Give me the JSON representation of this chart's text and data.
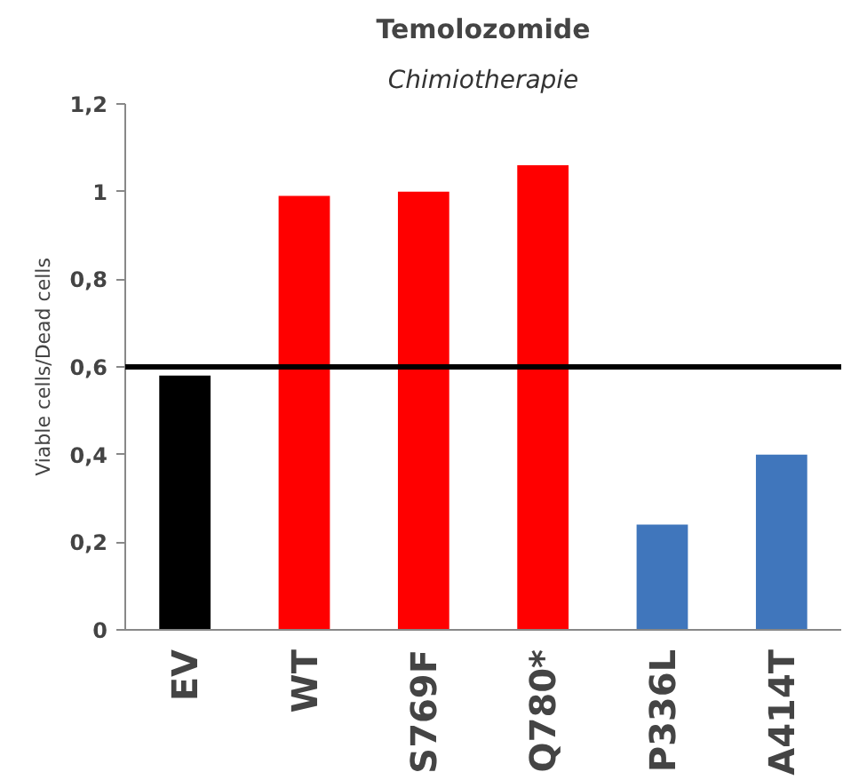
{
  "chart_data": {
    "type": "bar",
    "title": "Temolozomide",
    "subtitle": "Chimiotherapie",
    "ylabel": "Viable cells/Dead cells",
    "categories": [
      "EV",
      "WT",
      "S769F",
      "Q780*",
      "P336L",
      "A414T"
    ],
    "values": [
      0.58,
      0.99,
      1.0,
      1.06,
      0.24,
      0.4
    ],
    "colors": [
      "#000000",
      "#ff0000",
      "#ff0000",
      "#ff0000",
      "#4076bc",
      "#4076bc"
    ],
    "ylim": [
      0,
      1.2
    ],
    "yticks": [
      0,
      {
        "value": 0.2,
        "label": "0,2"
      },
      {
        "value": 0.4,
        "label": "0,4"
      },
      {
        "value": 0.6,
        "label": "0,6"
      },
      {
        "value": 0.8,
        "label": "0,8"
      },
      1,
      {
        "value": 1.2,
        "label": "1,2"
      }
    ],
    "ref_lines": [
      {
        "axis": "y",
        "value": 0.6,
        "color": "#000000"
      }
    ],
    "grid": false
  }
}
